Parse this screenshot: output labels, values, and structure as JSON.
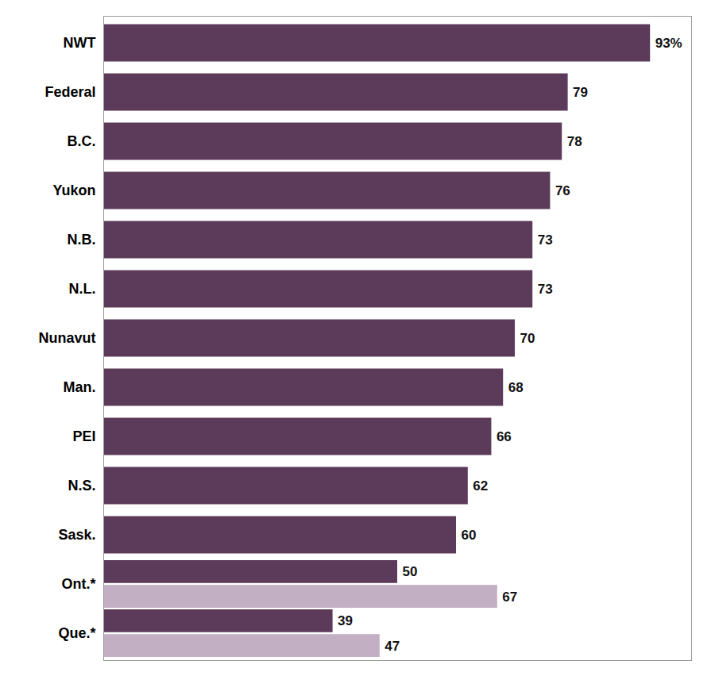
{
  "chart_data": {
    "type": "bar",
    "orientation": "horizontal",
    "categories": [
      "NWT",
      "Federal",
      "B.C.",
      "Yukon",
      "N.B.",
      "N.L.",
      "Nunavut",
      "Man.",
      "PEI",
      "N.S.",
      "Sask.",
      "Ont.*",
      "Que.*"
    ],
    "series": [
      {
        "color": "#5b3a5a",
        "values": [
          93,
          79,
          78,
          76,
          73,
          73,
          70,
          68,
          66,
          62,
          60,
          50,
          39
        ],
        "value_labels": [
          "93%",
          "79",
          "78",
          "76",
          "73",
          "73",
          "70",
          "68",
          "66",
          "62",
          "60",
          "50",
          "39"
        ]
      },
      {
        "color": "#c3afc3",
        "values": [
          null,
          null,
          null,
          null,
          null,
          null,
          null,
          null,
          null,
          null,
          null,
          67,
          47
        ]
      }
    ],
    "xlim": [
      0,
      100
    ],
    "data_labels": true,
    "tick_labels": "y",
    "grid": false
  }
}
